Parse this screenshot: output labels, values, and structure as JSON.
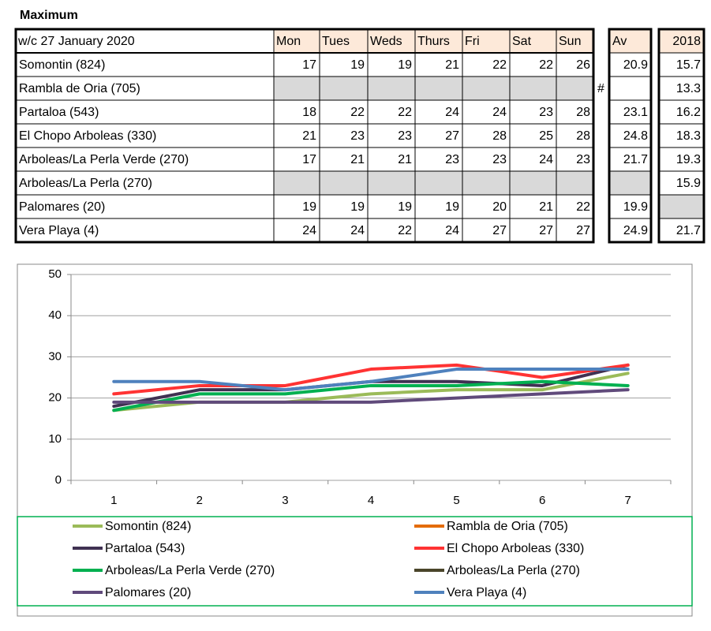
{
  "title": "Maximum",
  "table": {
    "header": [
      "w/c 27 January 2020",
      "Mon",
      "Tues",
      "Weds",
      "Thurs",
      "Fri",
      "Sat",
      "Sun"
    ],
    "av_header": "Av",
    "year_header": "2018",
    "rows": [
      {
        "name": "Somontin (824)",
        "values": [
          17,
          19,
          19,
          21,
          22,
          22,
          26
        ],
        "av": 20.9,
        "y2018": 15.7
      },
      {
        "name": "Rambla de Oria (705)",
        "values": [
          null,
          null,
          null,
          null,
          null,
          null,
          null
        ],
        "note": "#",
        "av": null,
        "y2018": 13.3
      },
      {
        "name": "Partaloa (543)",
        "values": [
          18,
          22,
          22,
          24,
          24,
          23,
          28
        ],
        "av": 23.1,
        "y2018": 16.2
      },
      {
        "name": "El Chopo  Arboleas (330)",
        "values": [
          21,
          23,
          23,
          27,
          28,
          25,
          28
        ],
        "av": 24.8,
        "y2018": 18.3
      },
      {
        "name": "Arboleas/La Perla Verde (270)",
        "values": [
          17,
          21,
          21,
          23,
          23,
          24,
          23
        ],
        "av": 21.7,
        "y2018": 19.3
      },
      {
        "name": "Arboleas/La Perla (270)",
        "values": [
          null,
          null,
          null,
          null,
          null,
          null,
          null
        ],
        "av": null,
        "y2018": 15.9
      },
      {
        "name": "Palomares (20)",
        "values": [
          19,
          19,
          19,
          19,
          20,
          21,
          22
        ],
        "av": 19.9,
        "y2018": null
      },
      {
        "name": "Vera Playa (4)",
        "values": [
          24,
          24,
          22,
          24,
          27,
          27,
          27
        ],
        "av": 24.9,
        "y2018": 21.7
      }
    ]
  },
  "chart_data": {
    "type": "line",
    "categories": [
      1,
      2,
      3,
      4,
      5,
      6,
      7
    ],
    "ylim": [
      0,
      50
    ],
    "yticks": [
      0,
      10,
      20,
      30,
      40,
      50
    ],
    "grid": true,
    "legend": "bottom",
    "series": [
      {
        "name": "Somontin (824)",
        "color": "#9bbb59",
        "values": [
          17,
          19,
          19,
          21,
          22,
          22,
          26
        ]
      },
      {
        "name": "Rambla de Oria (705)",
        "color": "#e46c0a",
        "values": [
          null,
          null,
          null,
          null,
          null,
          null,
          null
        ]
      },
      {
        "name": "Partaloa (543)",
        "color": "#403152",
        "values": [
          18,
          22,
          22,
          24,
          24,
          23,
          28
        ]
      },
      {
        "name": "El Chopo  Arboleas (330)",
        "color": "#ff3333",
        "values": [
          21,
          23,
          23,
          27,
          28,
          25,
          28
        ]
      },
      {
        "name": "Arboleas/La Perla Verde (270)",
        "color": "#00b050",
        "values": [
          17,
          21,
          21,
          23,
          23,
          24,
          23
        ]
      },
      {
        "name": "Arboleas/La Perla (270)",
        "color": "#4a452a",
        "values": [
          null,
          null,
          null,
          null,
          null,
          null,
          null
        ]
      },
      {
        "name": "Palomares (20)",
        "color": "#604a7b",
        "values": [
          19,
          19,
          19,
          19,
          20,
          21,
          22
        ]
      },
      {
        "name": "Vera Playa (4)",
        "color": "#4f81bd",
        "values": [
          24,
          24,
          22,
          24,
          27,
          27,
          27
        ]
      }
    ]
  }
}
